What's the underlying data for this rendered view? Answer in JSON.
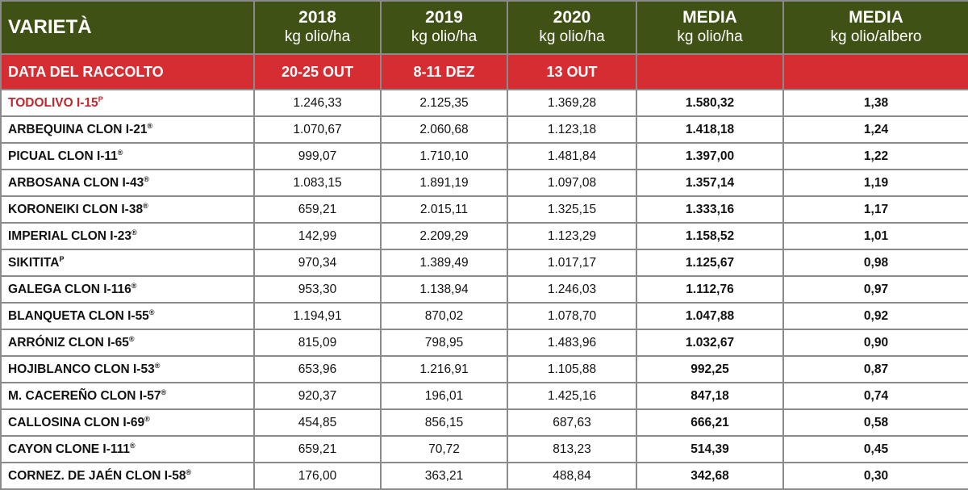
{
  "header": {
    "variety": "VARIETÀ",
    "columns": [
      {
        "title": "2018",
        "unit": "kg olio/ha"
      },
      {
        "title": "2019",
        "unit": "kg olio/ha"
      },
      {
        "title": "2020",
        "unit": "kg olio/ha"
      },
      {
        "title": "MEDIA",
        "unit": "kg olio/ha"
      },
      {
        "title": "MEDIA",
        "unit": "kg olio/albero"
      }
    ]
  },
  "harvest": {
    "label": "DATA DEL RACCOLTO",
    "dates": [
      "20-25 OUT",
      "8-11 DEZ",
      "13  OUT",
      "",
      ""
    ]
  },
  "rows": [
    {
      "name": "TODOLIVO I-15",
      "mark": "P",
      "values": [
        "1.246,33",
        "2.125,35",
        "1.369,28",
        "1.580,32",
        "1,38"
      ]
    },
    {
      "name": "ARBEQUINA CLON I-21",
      "mark": "®",
      "values": [
        "1.070,67",
        "2.060,68",
        "1.123,18",
        "1.418,18",
        "1,24"
      ]
    },
    {
      "name": "PICUAL CLON I-11",
      "mark": "®",
      "values": [
        "999,07",
        "1.710,10",
        "1.481,84",
        "1.397,00",
        "1,22"
      ]
    },
    {
      "name": "ARBOSANA CLON I-43",
      "mark": "®",
      "values": [
        "1.083,15",
        "1.891,19",
        "1.097,08",
        "1.357,14",
        "1,19"
      ]
    },
    {
      "name": "KORONEIKI CLON I-38",
      "mark": "®",
      "values": [
        "659,21",
        "2.015,11",
        "1.325,15",
        "1.333,16",
        "1,17"
      ]
    },
    {
      "name": "IMPERIAL CLON I-23",
      "mark": "®",
      "values": [
        "142,99",
        "2.209,29",
        "1.123,29",
        "1.158,52",
        "1,01"
      ]
    },
    {
      "name": "SIKITITA",
      "mark": "P",
      "values": [
        "970,34",
        "1.389,49",
        "1.017,17",
        "1.125,67",
        "0,98"
      ]
    },
    {
      "name": "GALEGA CLON I-116",
      "mark": "®",
      "values": [
        "953,30",
        "1.138,94",
        "1.246,03",
        "1.112,76",
        "0,97"
      ]
    },
    {
      "name": "BLANQUETA CLON I-55",
      "mark": "®",
      "values": [
        "1.194,91",
        "870,02",
        "1.078,70",
        "1.047,88",
        "0,92"
      ]
    },
    {
      "name": "ARRÓNIZ CLON I-65",
      "mark": "®",
      "values": [
        "815,09",
        "798,95",
        "1.483,96",
        "1.032,67",
        "0,90"
      ]
    },
    {
      "name": "HOJIBLANCO CLON I-53",
      "mark": "®",
      "values": [
        "653,96",
        "1.216,91",
        "1.105,88",
        "992,25",
        "0,87"
      ]
    },
    {
      "name": "M. CACEREÑO CLON I-57",
      "mark": "®",
      "values": [
        "920,37",
        "196,01",
        "1.425,16",
        "847,18",
        "0,74"
      ]
    },
    {
      "name": "CALLOSINA CLON I-69",
      "mark": "®",
      "values": [
        "454,85",
        "856,15",
        "687,63",
        "666,21",
        "0,58"
      ]
    },
    {
      "name": "CAYON CLONE I-111",
      "mark": "®",
      "values": [
        "659,21",
        "70,72",
        "813,23",
        "514,39",
        "0,45"
      ]
    },
    {
      "name": "CORNEZ. DE JAÉN CLON I-58",
      "mark": "®",
      "values": [
        "176,00",
        "363,21",
        "488,84",
        "342,68",
        "0,30"
      ]
    }
  ],
  "colors": {
    "header_bg": "#3f5114",
    "harvest_bg": "#d62d33",
    "highlight_text": "#c1272d"
  }
}
